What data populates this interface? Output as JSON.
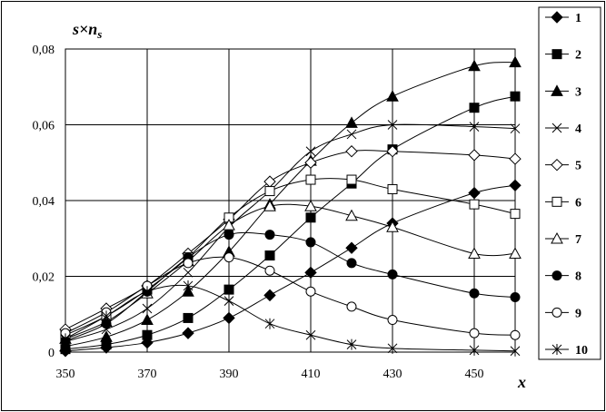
{
  "chart_data": {
    "type": "line",
    "ylabel_base": "s×n",
    "ylabel_sub": "s",
    "xlabel": "x",
    "xlim": [
      350,
      460
    ],
    "ylim": [
      0,
      0.08
    ],
    "x_ticks": [
      350,
      370,
      390,
      410,
      430,
      450
    ],
    "x_tick_labels": [
      "350",
      "370",
      "390",
      "410",
      "430",
      "450"
    ],
    "y_ticks": [
      0,
      0.02,
      0.04,
      0.06,
      0.08
    ],
    "y_tick_labels": [
      "0",
      "0,02",
      "0,04",
      "0,06",
      "0,08"
    ],
    "grid": true,
    "legend_position": "right",
    "x": [
      350,
      360,
      370,
      380,
      390,
      400,
      410,
      420,
      430,
      450,
      460
    ],
    "series": [
      {
        "label": "1",
        "marker": "diamond-filled",
        "values": [
          0.0003,
          0.0012,
          0.0025,
          0.005,
          0.009,
          0.015,
          0.021,
          0.0275,
          0.034,
          0.042,
          0.044
        ]
      },
      {
        "label": "2",
        "marker": "square-filled",
        "values": [
          0.0008,
          0.002,
          0.0045,
          0.009,
          0.0165,
          0.0255,
          0.0355,
          0.0445,
          0.0535,
          0.0645,
          0.0675
        ]
      },
      {
        "label": "3",
        "marker": "triangle-filled",
        "values": [
          0.0015,
          0.004,
          0.0085,
          0.016,
          0.0265,
          0.039,
          0.0505,
          0.0605,
          0.0675,
          0.0755,
          0.0765
        ]
      },
      {
        "label": "4",
        "marker": "x",
        "values": [
          0.0028,
          0.006,
          0.0115,
          0.021,
          0.033,
          0.0425,
          0.053,
          0.0575,
          0.06,
          0.0595,
          0.059
        ]
      },
      {
        "label": "5",
        "marker": "diamond-open",
        "values": [
          0.006,
          0.0115,
          0.0175,
          0.026,
          0.035,
          0.045,
          0.05,
          0.053,
          0.053,
          0.052,
          0.051
        ]
      },
      {
        "label": "6",
        "marker": "square-open",
        "values": [
          0.0045,
          0.0095,
          0.0165,
          0.025,
          0.0355,
          0.0425,
          0.0455,
          0.0455,
          0.043,
          0.039,
          0.0365
        ]
      },
      {
        "label": "7",
        "marker": "triangle-open",
        "values": [
          0.0035,
          0.008,
          0.0155,
          0.024,
          0.0335,
          0.0385,
          0.0385,
          0.036,
          0.033,
          0.026,
          0.026
        ]
      },
      {
        "label": "8",
        "marker": "circle-filled",
        "values": [
          0.003,
          0.0075,
          0.016,
          0.025,
          0.031,
          0.031,
          0.029,
          0.0235,
          0.0205,
          0.0155,
          0.0145
        ]
      },
      {
        "label": "9",
        "marker": "circle-open",
        "values": [
          0.005,
          0.0105,
          0.0175,
          0.0235,
          0.025,
          0.0215,
          0.016,
          0.012,
          0.0085,
          0.005,
          0.0045
        ]
      },
      {
        "label": "10",
        "marker": "star",
        "values": [
          0.0035,
          0.0095,
          0.016,
          0.0175,
          0.0135,
          0.0075,
          0.0045,
          0.002,
          0.001,
          0.0005,
          0.0003
        ]
      }
    ]
  }
}
